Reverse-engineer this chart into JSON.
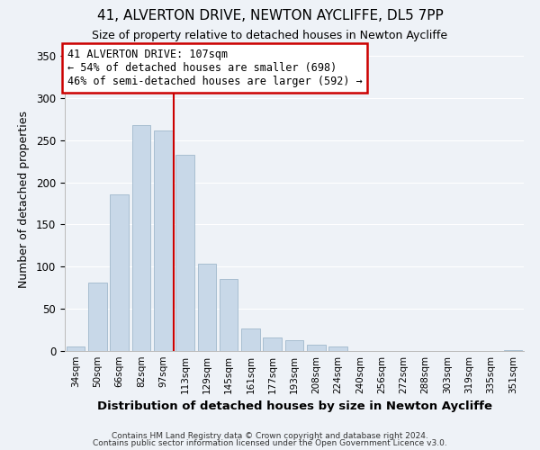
{
  "title": "41, ALVERTON DRIVE, NEWTON AYCLIFFE, DL5 7PP",
  "subtitle": "Size of property relative to detached houses in Newton Aycliffe",
  "xlabel": "Distribution of detached houses by size in Newton Aycliffe",
  "ylabel": "Number of detached properties",
  "bar_labels": [
    "34sqm",
    "50sqm",
    "66sqm",
    "82sqm",
    "97sqm",
    "113sqm",
    "129sqm",
    "145sqm",
    "161sqm",
    "177sqm",
    "193sqm",
    "208sqm",
    "224sqm",
    "240sqm",
    "256sqm",
    "272sqm",
    "288sqm",
    "303sqm",
    "319sqm",
    "335sqm",
    "351sqm"
  ],
  "bar_values": [
    5,
    81,
    186,
    268,
    261,
    233,
    103,
    85,
    27,
    16,
    13,
    7,
    5,
    0,
    0,
    0,
    0,
    0,
    0,
    0,
    1
  ],
  "bar_color": "#c8d8e8",
  "bar_edge_color": "#a0b8cc",
  "vline_x_index": 5,
  "vline_color": "#cc0000",
  "annotation_title": "41 ALVERTON DRIVE: 107sqm",
  "annotation_line1": "← 54% of detached houses are smaller (698)",
  "annotation_line2": "46% of semi-detached houses are larger (592) →",
  "annotation_box_color": "#ffffff",
  "annotation_box_edge": "#cc0000",
  "ylim": [
    0,
    360
  ],
  "yticks": [
    0,
    50,
    100,
    150,
    200,
    250,
    300,
    350
  ],
  "footer1": "Contains HM Land Registry data © Crown copyright and database right 2024.",
  "footer2": "Contains public sector information licensed under the Open Government Licence v3.0.",
  "bg_color": "#eef2f7",
  "grid_color": "#ffffff",
  "title_fontsize": 11,
  "subtitle_fontsize": 9,
  "ylabel_fontsize": 9,
  "xlabel_fontsize": 9.5
}
